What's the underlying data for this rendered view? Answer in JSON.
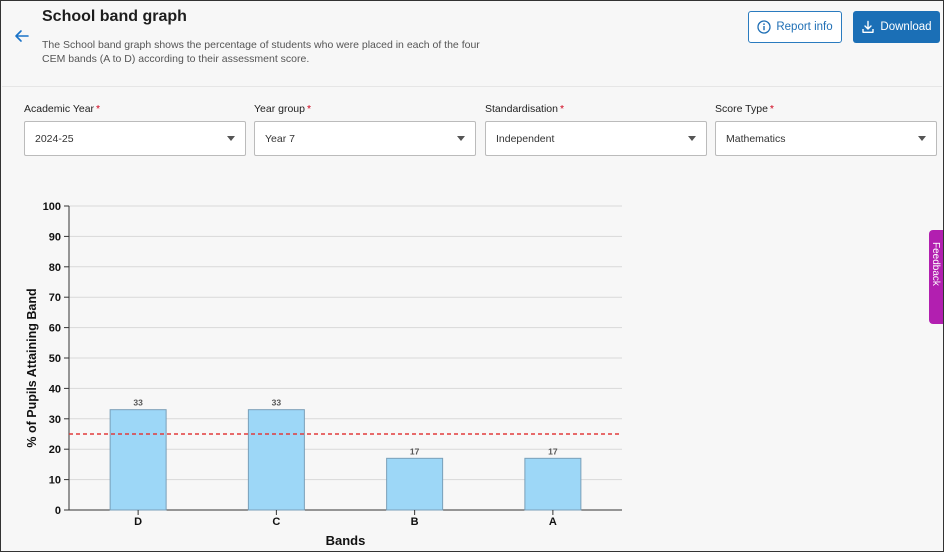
{
  "header": {
    "title": "School band graph",
    "description": "The School band graph shows the percentage of students who were placed in each of the four CEM bands (A to D) according to their assessment score.",
    "report_info_label": "Report info",
    "download_label": "Download"
  },
  "filters": [
    {
      "label": "Academic Year",
      "value": "2024-25"
    },
    {
      "label": "Year group",
      "value": "Year 7"
    },
    {
      "label": "Standardisation",
      "value": "Independent"
    },
    {
      "label": "Score Type",
      "value": "Mathematics"
    }
  ],
  "feedback_label": "Feedback",
  "colors": {
    "accent": "#1b6fb6",
    "bar_fill": "#9dd7f7",
    "bar_stroke": "#7a9fb8",
    "reference_line": "#e23b3b",
    "feedback": "#b21fb0",
    "required": "#d0021b"
  },
  "chart_data": {
    "type": "bar",
    "categories": [
      "D",
      "C",
      "B",
      "A"
    ],
    "values": [
      33,
      33,
      17,
      17
    ],
    "data_labels": [
      "33",
      "33",
      "17",
      "17"
    ],
    "xlabel": "Bands",
    "ylabel": "% of Pupils Attaining Band",
    "ylim": [
      0,
      100
    ],
    "yticks": [
      0,
      10,
      20,
      30,
      40,
      50,
      60,
      70,
      80,
      90,
      100
    ],
    "reference_line": {
      "value": 25,
      "style": "dashed"
    },
    "grid": true
  }
}
